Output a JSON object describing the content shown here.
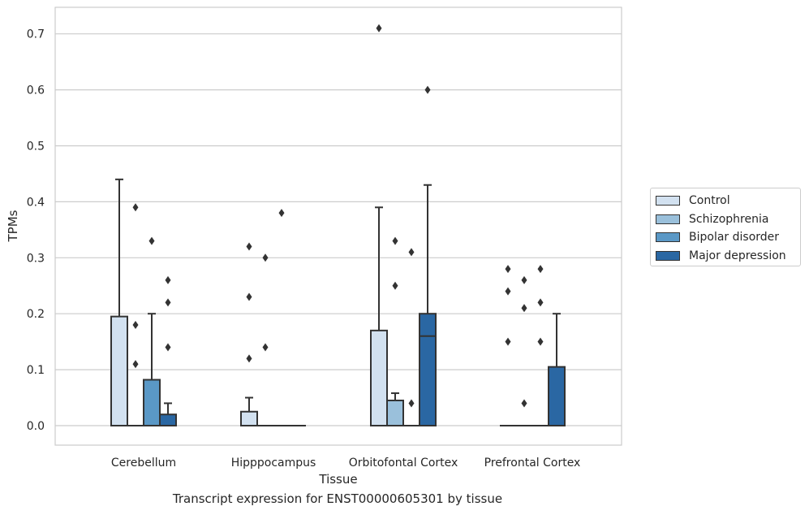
{
  "chart_data": {
    "type": "box",
    "xlabel": "Tissue",
    "ylabel": "TPMs",
    "ylim": [
      -0.035,
      0.745
    ],
    "yticks": [
      "0.0",
      "0.1",
      "0.2",
      "0.3",
      "0.4",
      "0.5",
      "0.6",
      "0.7"
    ],
    "ytick_values": [
      0,
      0.1,
      0.2,
      0.3,
      0.4,
      0.5,
      0.6,
      0.7
    ],
    "grid": true,
    "legend_position": "right",
    "categories": [
      "Cerebellum",
      "Hipppocampus",
      "Orbitofontal Cortex",
      "Prefrontal Cortex"
    ],
    "series": [
      {
        "name": "Control",
        "color": "#d2e1f0",
        "boxes": [
          {
            "q1": 0,
            "median": 0,
            "q3": 0.195,
            "whisker_low": 0,
            "whisker_high": 0.44,
            "outliers": []
          },
          {
            "q1": 0,
            "median": 0,
            "q3": 0.025,
            "whisker_low": 0,
            "whisker_high": 0.05,
            "outliers": [
              0.12,
              0.23,
              0.32
            ]
          },
          {
            "q1": 0,
            "median": 0,
            "q3": 0.17,
            "whisker_low": 0,
            "whisker_high": 0.39,
            "outliers": [
              0.71
            ]
          },
          {
            "q1": 0,
            "median": 0,
            "q3": 0,
            "whisker_low": 0,
            "whisker_high": 0,
            "outliers": [
              0.15,
              0.24,
              0.28
            ]
          }
        ]
      },
      {
        "name": "Schizophrenia",
        "color": "#9ac0db",
        "boxes": [
          {
            "q1": 0,
            "median": 0,
            "q3": 0,
            "whisker_low": 0,
            "whisker_high": 0,
            "outliers": [
              0.11,
              0.18,
              0.39
            ]
          },
          {
            "q1": 0,
            "median": 0,
            "q3": 0,
            "whisker_low": 0,
            "whisker_high": 0,
            "outliers": [
              0.14,
              0.3
            ]
          },
          {
            "q1": 0,
            "median": 0,
            "q3": 0.045,
            "whisker_low": 0,
            "whisker_high": 0.058,
            "outliers": [
              0.25,
              0.33
            ]
          },
          {
            "q1": 0,
            "median": 0,
            "q3": 0,
            "whisker_low": 0,
            "whisker_high": 0,
            "outliers": [
              0.04,
              0.21,
              0.26
            ]
          }
        ]
      },
      {
        "name": "Bipolar disorder",
        "color": "#5a98c6",
        "boxes": [
          {
            "q1": 0,
            "median": 0,
            "q3": 0.082,
            "whisker_low": 0,
            "whisker_high": 0.2,
            "outliers": [
              0.33
            ]
          },
          {
            "q1": 0,
            "median": 0,
            "q3": 0,
            "whisker_low": 0,
            "whisker_high": 0,
            "outliers": [
              0.38
            ]
          },
          {
            "q1": 0,
            "median": 0,
            "q3": 0,
            "whisker_low": 0,
            "whisker_high": 0,
            "outliers": [
              0.04,
              0.31
            ]
          },
          {
            "q1": 0,
            "median": 0,
            "q3": 0,
            "whisker_low": 0,
            "whisker_high": 0,
            "outliers": [
              0.15,
              0.22,
              0.28
            ]
          }
        ]
      },
      {
        "name": "Major depression",
        "color": "#2a67a3",
        "boxes": [
          {
            "q1": 0,
            "median": 0,
            "q3": 0.02,
            "whisker_low": 0,
            "whisker_high": 0.04,
            "outliers": [
              0.14,
              0.22,
              0.26
            ]
          },
          {
            "q1": 0,
            "median": 0,
            "q3": 0,
            "whisker_low": 0,
            "whisker_high": 0,
            "outliers": []
          },
          {
            "q1": 0,
            "median": 0.16,
            "q3": 0.2,
            "whisker_low": 0,
            "whisker_high": 0.43,
            "outliers": [
              0.6
            ]
          },
          {
            "q1": 0,
            "median": 0,
            "q3": 0.105,
            "whisker_low": 0,
            "whisker_high": 0.2,
            "outliers": []
          }
        ]
      }
    ]
  },
  "caption": "Transcript expression for ENST00000605301 by tissue"
}
